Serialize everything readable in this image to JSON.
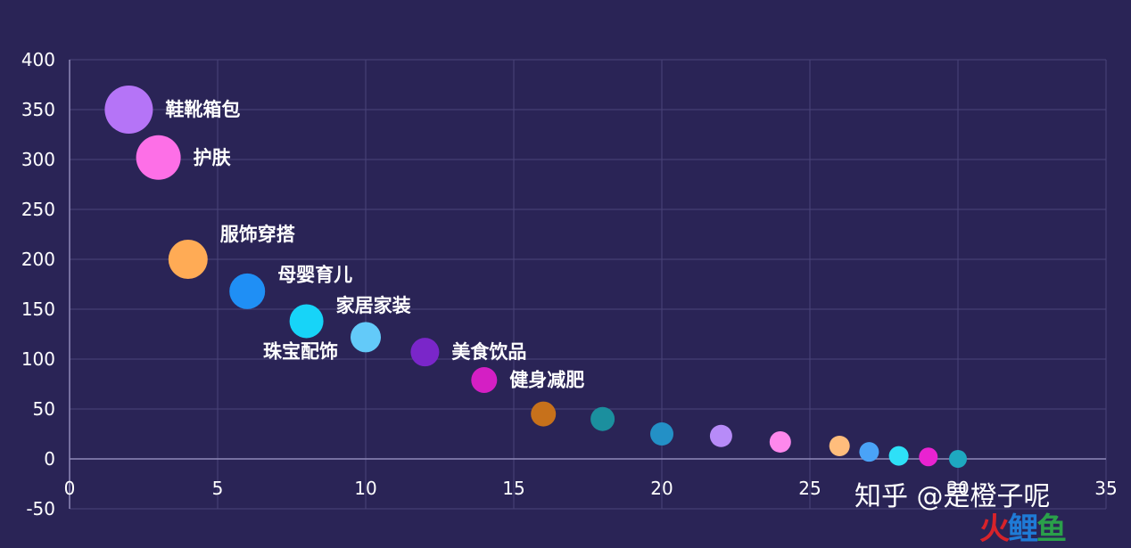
{
  "chart_data": {
    "type": "scatter",
    "xlim": [
      0,
      35
    ],
    "ylim": [
      -50,
      400
    ],
    "x_ticks": [
      0,
      5,
      10,
      15,
      20,
      25,
      30,
      35
    ],
    "y_ticks": [
      -50,
      0,
      50,
      100,
      150,
      200,
      250,
      300,
      350,
      400
    ],
    "grid": true,
    "points": [
      {
        "x": 2,
        "y": 350,
        "size": 27,
        "color": "#b574f7",
        "label": "鞋靴箱包"
      },
      {
        "x": 3,
        "y": 302,
        "size": 25,
        "color": "#fd6fe7",
        "label": "护肤"
      },
      {
        "x": 4,
        "y": 200,
        "size": 22,
        "color": "#ffab55",
        "label": "服饰穿搭"
      },
      {
        "x": 6,
        "y": 168,
        "size": 20,
        "color": "#1f8ff5",
        "label": "母婴育儿"
      },
      {
        "x": 8,
        "y": 138,
        "size": 19,
        "color": "#17d4f8",
        "label": "家居家装"
      },
      {
        "x": 10,
        "y": 122,
        "size": 17,
        "color": "#63caf9",
        "label": "珠宝配饰"
      },
      {
        "x": 12,
        "y": 107,
        "size": 16,
        "color": "#7a26c9",
        "label": "美食饮品"
      },
      {
        "x": 14,
        "y": 79,
        "size": 14.5,
        "color": "#d41fc4",
        "label": "健身减肥"
      },
      {
        "x": 16,
        "y": 45,
        "size": 14,
        "color": "#c7711b",
        "label": ""
      },
      {
        "x": 18,
        "y": 40,
        "size": 13.5,
        "color": "#1b8f9e",
        "label": ""
      },
      {
        "x": 20,
        "y": 25,
        "size": 13,
        "color": "#2390c6",
        "label": ""
      },
      {
        "x": 22,
        "y": 23,
        "size": 12.5,
        "color": "#b78bf8",
        "label": ""
      },
      {
        "x": 24,
        "y": 17,
        "size": 12,
        "color": "#fe88ec",
        "label": ""
      },
      {
        "x": 26,
        "y": 13,
        "size": 11.5,
        "color": "#ffbd7c",
        "label": ""
      },
      {
        "x": 27,
        "y": 7,
        "size": 11,
        "color": "#4aa3f7",
        "label": ""
      },
      {
        "x": 28,
        "y": 3,
        "size": 11,
        "color": "#2ee0f7",
        "label": ""
      },
      {
        "x": 29,
        "y": 2,
        "size": 10.5,
        "color": "#e923d1",
        "label": ""
      },
      {
        "x": 30,
        "y": 0,
        "size": 10,
        "color": "#1ea8c0",
        "label": ""
      }
    ]
  },
  "watermark": {
    "text": "知乎 @是橙子呢",
    "logo_parts": [
      "火",
      "鲤",
      "鱼"
    ]
  }
}
